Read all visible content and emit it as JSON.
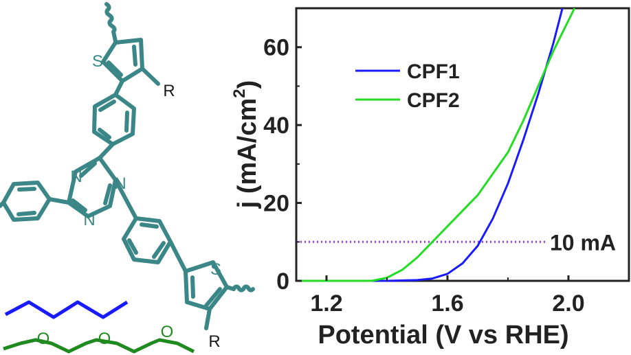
{
  "structure": {
    "atoms": {
      "S": "S",
      "N": "N",
      "O": "O",
      "R": "R"
    },
    "colors": {
      "scaffold": "#3b8686",
      "alkyl_chain": "#1a1aff",
      "glycol_chain": "#1f8a1f"
    }
  },
  "chart_data": {
    "type": "line",
    "xlabel": "Potential (V vs RHE)",
    "ylabel": "j (mA/cm",
    "ylabel_sup": "2",
    "ylabel_close": ")",
    "xlim": [
      1.1,
      2.2
    ],
    "ylim": [
      0,
      70
    ],
    "xticks": [
      "1.2",
      "1.6",
      "2.0"
    ],
    "xtick_values": [
      1.2,
      1.6,
      2.0
    ],
    "yticks": [
      "0",
      "20",
      "40",
      "60"
    ],
    "ytick_values": [
      0,
      20,
      40,
      60
    ],
    "grid": false,
    "legend_position": "top-left",
    "series": [
      {
        "name": "CPF1",
        "color": "#1a1aff",
        "x": [
          1.1,
          1.4,
          1.5,
          1.55,
          1.6,
          1.65,
          1.7,
          1.75,
          1.8,
          1.85,
          1.9,
          1.95,
          1.98
        ],
        "y": [
          0,
          0,
          0.2,
          0.6,
          1.8,
          4.5,
          9.0,
          16,
          25,
          36,
          48,
          61,
          70
        ]
      },
      {
        "name": "CPF2",
        "color": "#22dd22",
        "x": [
          1.1,
          1.35,
          1.4,
          1.45,
          1.5,
          1.55,
          1.6,
          1.7,
          1.8,
          1.85,
          1.9,
          1.95,
          2.02
        ],
        "y": [
          0,
          0,
          0.8,
          2.8,
          6.0,
          10,
          14,
          22,
          33,
          41,
          50,
          59,
          70
        ]
      }
    ],
    "reference_line": {
      "y": 10,
      "label": "10 mA",
      "color": "#9933ff"
    }
  }
}
